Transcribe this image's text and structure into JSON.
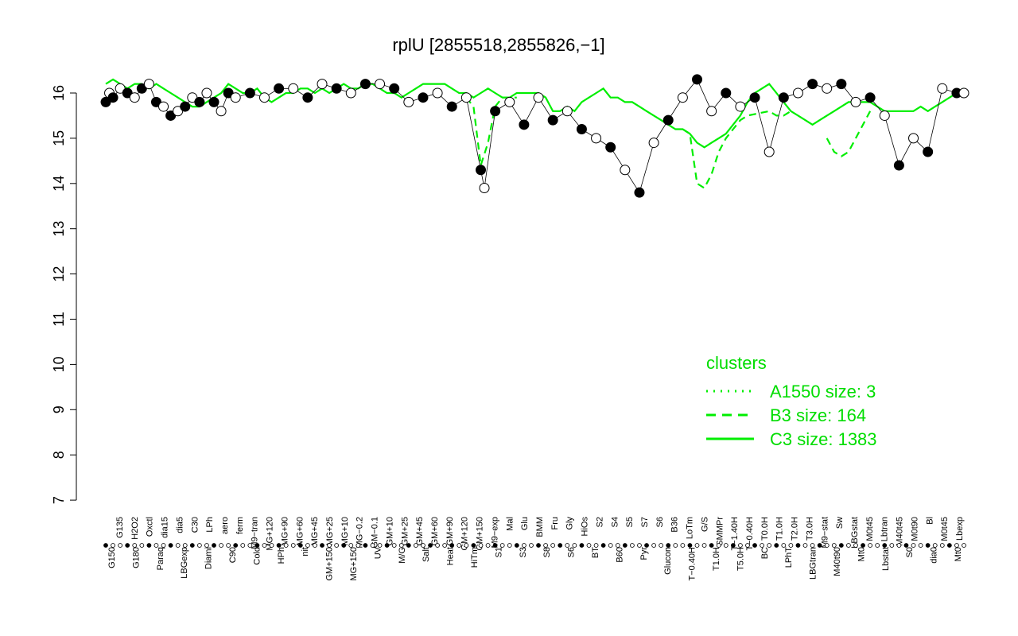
{
  "chart_data": {
    "type": "line",
    "title": "rplU [2855518,2855826,−1]",
    "xlabel": "",
    "ylabel": "",
    "ylim": [
      7,
      16.5
    ],
    "yticks": [
      7,
      8,
      9,
      10,
      11,
      12,
      13,
      14,
      15,
      16
    ],
    "yticklabels": [
      "7",
      "8",
      "9",
      "10",
      "11",
      "12",
      "13",
      "14",
      "15",
      "16"
    ],
    "grid": false,
    "legend": {
      "title": "clusters",
      "placement": "bottom-right",
      "entries": [
        {
          "label": "A1550 size: 3",
          "style": "dotted"
        },
        {
          "label": "B3 size: 164",
          "style": "dashed"
        },
        {
          "label": "C3 size: 1383",
          "style": "solid"
        }
      ]
    },
    "colors": {
      "series": "#00ee00",
      "legend_text": "#00dd00",
      "points": "#000000",
      "axis": "#000000"
    },
    "x_labels_top": [
      "G135",
      "H2O2",
      "Oxctl",
      "dia15",
      "dia5",
      "C30",
      "LPh",
      "aero",
      "ferm",
      "M9−tran",
      "MG+120",
      "MG+90",
      "MG+60",
      "MG+45",
      "MG+25",
      "MG+10",
      "MG−0.2",
      "GM−0.1",
      "GM+10",
      "GM+25",
      "GM+45",
      "GM+60",
      "GM+90",
      "GM+120",
      "GM+150",
      "M9−exp",
      "Mal",
      "Glu",
      "BMM",
      "Fru",
      "Gly",
      "HiOs",
      "S2",
      "S4",
      "S5",
      "S7",
      "S6",
      "B36",
      "LoTm",
      "G/S",
      "SMMPr",
      "T−1.40H",
      "T−0.40H",
      "T0.0H",
      "T1.0H",
      "T2.0H",
      "T3.0H",
      "M9−stat",
      "Sw",
      "LBGstat",
      "M0t45",
      "Lbtran",
      "M40t45",
      "M0t90",
      "Bl",
      "M0t45",
      "Lbexp"
    ],
    "x_labels_bottom": [
      "G150",
      "G180",
      "Paraq",
      "LBGexp",
      "Diami",
      "C90",
      "Cold",
      "HPh",
      "nit",
      "GM+150",
      "MG+150",
      "UV",
      "M/G",
      "Salt",
      "Heat",
      "HiTm",
      "S1",
      "S3",
      "S8",
      "S6",
      "BT",
      "B60",
      "Pyr",
      "Glucon",
      "T−0.40H",
      "T1.0H",
      "T5.0H",
      "BC",
      "LPhT",
      "LBGtran",
      "M40t90",
      "Mt0",
      "Lbstat",
      "S0",
      "dia0",
      "Mt0"
    ],
    "series": [
      {
        "name": "C3 size: 1383",
        "style": "solid",
        "x": [
          0,
          1,
          2,
          3,
          4,
          5,
          6,
          7,
          8,
          9,
          10,
          11,
          12,
          13,
          14,
          15,
          16,
          17,
          18,
          19,
          20,
          21,
          22,
          23,
          24,
          25,
          26,
          27,
          28,
          29,
          30,
          31,
          32,
          33,
          34,
          35,
          36,
          37,
          38,
          39,
          40,
          41,
          42,
          43,
          44,
          45,
          46,
          47,
          48,
          49,
          50,
          51,
          52,
          53,
          54,
          55,
          56,
          57,
          58,
          59,
          60,
          61,
          62,
          63,
          64,
          65,
          66,
          67,
          68,
          69,
          70,
          71,
          72,
          73,
          74,
          75,
          76,
          77,
          78,
          79,
          80,
          81,
          82,
          83,
          84,
          85,
          86,
          87,
          88,
          89,
          90,
          91,
          92,
          93,
          94,
          95,
          96,
          97,
          98,
          99,
          100,
          101,
          102,
          103,
          104,
          105,
          106,
          107,
          108,
          109,
          110,
          111,
          112,
          113,
          114,
          115,
          116,
          117,
          118,
          119
        ],
        "y": [
          16.2,
          16.3,
          16.2,
          16.1,
          16.2,
          16.2,
          16.1,
          16.2,
          16.1,
          16.0,
          15.9,
          15.8,
          15.7,
          15.7,
          15.8,
          15.9,
          16.0,
          16.2,
          16.1,
          16.0,
          16.0,
          16.1,
          15.9,
          15.8,
          15.9,
          16.0,
          16.0,
          16.1,
          16.1,
          16.0,
          16.1,
          16.0,
          16.1,
          16.2,
          16.1,
          16.1,
          16.2,
          16.2,
          16.1,
          16.0,
          16.0,
          15.9,
          16.0,
          16.1,
          16.2,
          16.2,
          16.2,
          16.2,
          16.1,
          16.0,
          16.0,
          15.9,
          16.0,
          16.1,
          16.0,
          15.9,
          15.9,
          16.0,
          16.0,
          16.0,
          16.0,
          15.9,
          15.6,
          15.6,
          15.7,
          15.6,
          15.8,
          15.9,
          16.0,
          16.1,
          15.9,
          15.9,
          15.8,
          15.8,
          15.7,
          15.6,
          15.5,
          15.4,
          15.3,
          15.2,
          15.2,
          15.1,
          14.9,
          14.8,
          14.9,
          15.0,
          15.1,
          15.3,
          15.5,
          15.8,
          16.0,
          16.1,
          16.2,
          16.0,
          15.8,
          15.6,
          15.5,
          15.4,
          15.3,
          15.4,
          15.5,
          15.6,
          15.7,
          15.8,
          15.8,
          15.8,
          15.8,
          15.7,
          15.6,
          15.6,
          15.6,
          15.6,
          15.6,
          15.7,
          15.6,
          15.7,
          15.8,
          15.9,
          16.0,
          16.1
        ]
      },
      {
        "name": "B3 size: 164",
        "style": "dashed",
        "x": [
          50,
          51,
          52,
          53,
          54,
          55,
          56,
          57,
          80,
          81,
          82,
          83,
          84,
          85,
          86,
          87,
          88,
          89,
          92,
          93,
          94,
          95,
          100,
          101,
          102,
          103,
          104,
          105,
          106
        ],
        "y": [
          15.9,
          15.7,
          14.4,
          14.9,
          15.7,
          15.9,
          15.9,
          15.9,
          15.2,
          15.1,
          14.0,
          13.9,
          14.2,
          14.7,
          15.0,
          15.2,
          15.4,
          15.5,
          15.6,
          15.5,
          15.5,
          15.6,
          15.0,
          14.7,
          14.6,
          14.7,
          15.0,
          15.3,
          15.6
        ],
        "points": [
          [
            0,
            15.8
          ],
          [
            0.5,
            16.0
          ],
          [
            1,
            15.9
          ],
          [
            2,
            16.1
          ],
          [
            3,
            16.0
          ],
          [
            4,
            15.9
          ],
          [
            5,
            16.1
          ],
          [
            6,
            16.2
          ],
          [
            7,
            15.8
          ],
          [
            8,
            15.7
          ],
          [
            9,
            15.5
          ],
          [
            10,
            15.6
          ],
          [
            11,
            15.7
          ],
          [
            12,
            15.9
          ],
          [
            13,
            15.8
          ],
          [
            14,
            16.0
          ],
          [
            15,
            15.8
          ],
          [
            16,
            15.6
          ],
          [
            17,
            16.0
          ],
          [
            18,
            15.9
          ],
          [
            20,
            16.0
          ],
          [
            22,
            15.9
          ],
          [
            24,
            16.1
          ],
          [
            26,
            16.1
          ],
          [
            28,
            15.9
          ],
          [
            30,
            16.2
          ],
          [
            32,
            16.1
          ],
          [
            34,
            16.0
          ],
          [
            36,
            16.2
          ],
          [
            38,
            16.2
          ],
          [
            40,
            16.1
          ],
          [
            42,
            15.8
          ],
          [
            44,
            15.9
          ],
          [
            46,
            16.0
          ],
          [
            48,
            15.7
          ],
          [
            50,
            15.9
          ],
          [
            52,
            14.3
          ],
          [
            52.5,
            13.9
          ],
          [
            54,
            15.6
          ],
          [
            56,
            15.8
          ],
          [
            58,
            15.3
          ],
          [
            60,
            15.9
          ],
          [
            62,
            15.4
          ],
          [
            64,
            15.6
          ],
          [
            66,
            15.2
          ],
          [
            68,
            15.0
          ],
          [
            70,
            14.8
          ],
          [
            72,
            14.3
          ],
          [
            74,
            13.8
          ],
          [
            76,
            14.9
          ],
          [
            78,
            15.4
          ],
          [
            80,
            15.9
          ],
          [
            82,
            16.3
          ],
          [
            84,
            15.6
          ],
          [
            86,
            16.0
          ],
          [
            88,
            15.7
          ],
          [
            90,
            15.9
          ],
          [
            92,
            14.7
          ],
          [
            94,
            15.9
          ],
          [
            96,
            16.0
          ],
          [
            98,
            16.2
          ],
          [
            100,
            16.1
          ],
          [
            102,
            16.2
          ],
          [
            104,
            15.8
          ],
          [
            106,
            15.9
          ],
          [
            108,
            15.5
          ],
          [
            110,
            14.4
          ],
          [
            112,
            15.0
          ],
          [
            114,
            14.7
          ],
          [
            116,
            16.1
          ],
          [
            118,
            16.0
          ],
          [
            119,
            16.0
          ]
        ]
      }
    ]
  }
}
